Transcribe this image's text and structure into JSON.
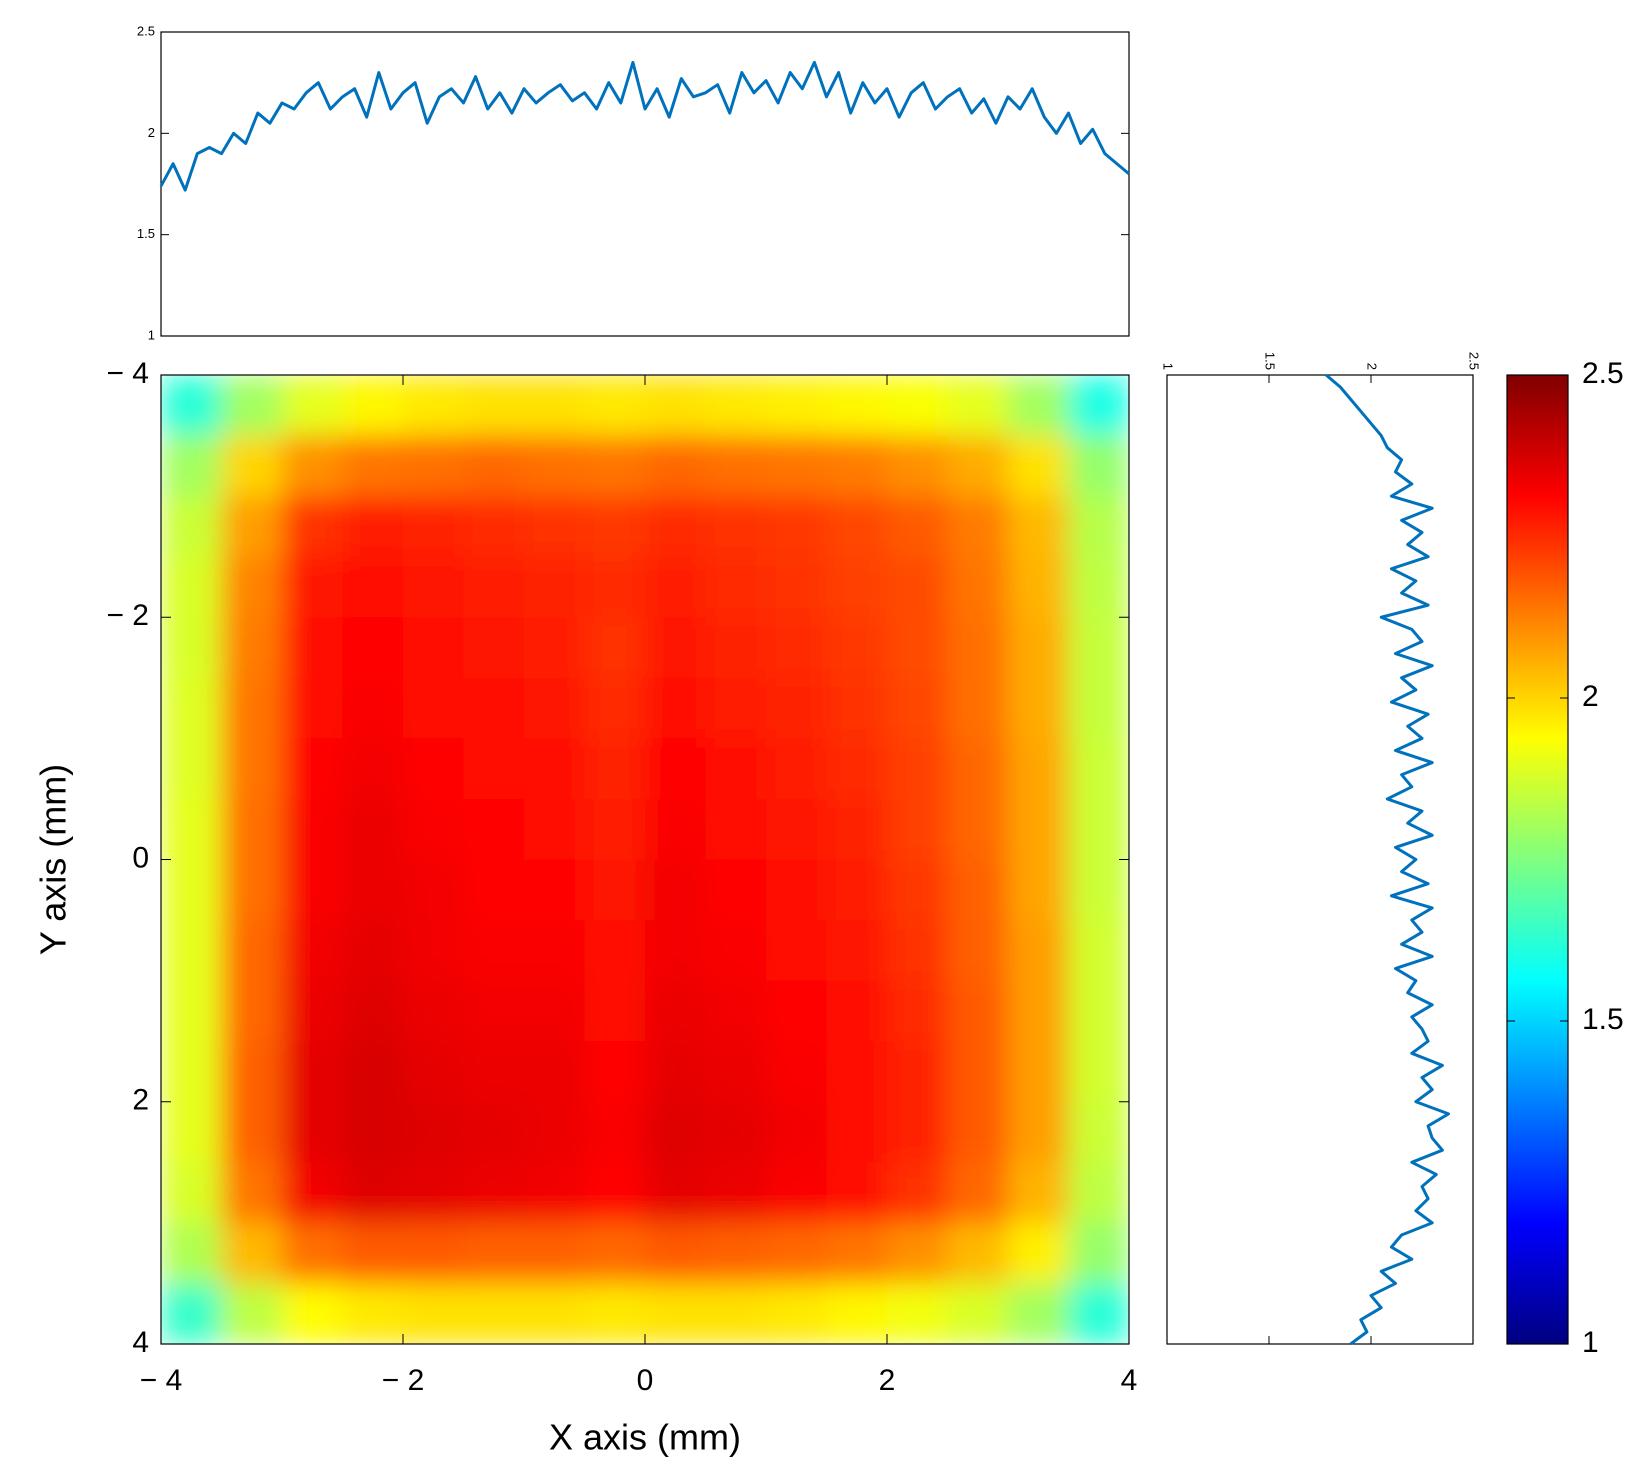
{
  "chart_data": [
    {
      "type": "heatmap",
      "xlabel": "X axis (mm)",
      "ylabel": "Y axis (mm)",
      "xlim": [
        -4,
        4
      ],
      "ylim": [
        4,
        -4
      ],
      "xticks": [
        {
          "value": -4,
          "label": "− 4"
        },
        {
          "value": -2,
          "label": "− 2"
        },
        0,
        2,
        4
      ],
      "yticks": [
        {
          "value": -4,
          "label": "− 4"
        },
        {
          "value": -2,
          "label": "− 2"
        },
        0,
        2,
        4
      ],
      "colormap": "jet",
      "clim": [
        1,
        2.5
      ],
      "cticks": [
        1,
        1.5,
        2,
        2.5
      ],
      "values": [
        [
          1.62,
          1.8,
          1.9,
          1.95,
          1.97,
          1.98,
          1.98,
          1.97,
          1.98,
          1.97,
          1.96,
          1.95,
          1.93,
          1.9,
          1.8,
          1.6
        ],
        [
          1.8,
          2.0,
          2.1,
          2.14,
          2.15,
          2.16,
          2.15,
          2.14,
          2.16,
          2.15,
          2.14,
          2.13,
          2.1,
          2.06,
          1.98,
          1.78
        ],
        [
          1.86,
          2.08,
          2.24,
          2.27,
          2.26,
          2.25,
          2.24,
          2.23,
          2.25,
          2.24,
          2.23,
          2.21,
          2.18,
          2.13,
          2.04,
          1.83
        ],
        [
          1.88,
          2.12,
          2.28,
          2.3,
          2.28,
          2.27,
          2.26,
          2.25,
          2.27,
          2.25,
          2.24,
          2.22,
          2.2,
          2.14,
          2.05,
          1.84
        ],
        [
          1.88,
          2.13,
          2.29,
          2.31,
          2.29,
          2.28,
          2.27,
          2.24,
          2.28,
          2.26,
          2.25,
          2.23,
          2.2,
          2.15,
          2.06,
          1.85
        ],
        [
          1.89,
          2.14,
          2.3,
          2.32,
          2.3,
          2.29,
          2.28,
          2.25,
          2.3,
          2.27,
          2.26,
          2.24,
          2.21,
          2.15,
          2.06,
          1.85
        ],
        [
          1.89,
          2.14,
          2.31,
          2.33,
          2.31,
          2.3,
          2.29,
          2.26,
          2.31,
          2.29,
          2.27,
          2.25,
          2.22,
          2.16,
          2.07,
          1.86
        ],
        [
          1.9,
          2.15,
          2.32,
          2.34,
          2.32,
          2.31,
          2.3,
          2.27,
          2.32,
          2.3,
          2.28,
          2.26,
          2.22,
          2.16,
          2.07,
          1.86
        ],
        [
          1.9,
          2.15,
          2.32,
          2.34,
          2.33,
          2.31,
          2.31,
          2.28,
          2.33,
          2.31,
          2.29,
          2.27,
          2.23,
          2.17,
          2.07,
          1.86
        ],
        [
          1.9,
          2.16,
          2.33,
          2.35,
          2.33,
          2.32,
          2.32,
          2.29,
          2.33,
          2.32,
          2.3,
          2.28,
          2.24,
          2.17,
          2.08,
          1.87
        ],
        [
          1.9,
          2.16,
          2.34,
          2.36,
          2.34,
          2.33,
          2.33,
          2.3,
          2.34,
          2.33,
          2.31,
          2.29,
          2.25,
          2.18,
          2.08,
          1.87
        ],
        [
          1.9,
          2.17,
          2.35,
          2.37,
          2.35,
          2.34,
          2.34,
          2.31,
          2.35,
          2.34,
          2.32,
          2.3,
          2.26,
          2.18,
          2.08,
          1.87
        ],
        [
          1.9,
          2.17,
          2.35,
          2.37,
          2.36,
          2.35,
          2.34,
          2.32,
          2.36,
          2.35,
          2.33,
          2.3,
          2.26,
          2.18,
          2.08,
          1.86
        ],
        [
          1.88,
          2.14,
          2.33,
          2.36,
          2.35,
          2.34,
          2.33,
          2.31,
          2.35,
          2.34,
          2.32,
          2.29,
          2.24,
          2.16,
          2.05,
          1.84
        ],
        [
          1.82,
          2.04,
          2.15,
          2.18,
          2.18,
          2.17,
          2.17,
          2.16,
          2.18,
          2.17,
          2.16,
          2.14,
          2.1,
          2.04,
          1.96,
          1.78
        ],
        [
          1.64,
          1.84,
          1.94,
          1.97,
          1.98,
          1.98,
          1.98,
          1.97,
          1.98,
          1.98,
          1.97,
          1.95,
          1.92,
          1.88,
          1.8,
          1.62
        ]
      ]
    },
    {
      "type": "line",
      "orientation": "horizontal",
      "color": "#0072bd",
      "xlim": [
        -4,
        4
      ],
      "ylim": [
        1,
        2.5
      ],
      "yticks": [
        1,
        1.5,
        2,
        2.5
      ],
      "x": [
        -4,
        -3.9,
        -3.8,
        -3.7,
        -3.6,
        -3.5,
        -3.4,
        -3.3,
        -3.2,
        -3.1,
        -3,
        -2.9,
        -2.8,
        -2.7,
        -2.6,
        -2.5,
        -2.4,
        -2.3,
        -2.2,
        -2.1,
        -2,
        -1.9,
        -1.8,
        -1.7,
        -1.6,
        -1.5,
        -1.4,
        -1.3,
        -1.2,
        -1.1,
        -1,
        -0.9,
        -0.8,
        -0.7,
        -0.6,
        -0.5,
        -0.4,
        -0.3,
        -0.2,
        -0.1,
        0,
        0.1,
        0.2,
        0.3,
        0.4,
        0.5,
        0.6,
        0.7,
        0.8,
        0.9,
        1,
        1.1,
        1.2,
        1.3,
        1.4,
        1.5,
        1.6,
        1.7,
        1.8,
        1.9,
        2,
        2.1,
        2.2,
        2.3,
        2.4,
        2.5,
        2.6,
        2.7,
        2.8,
        2.9,
        3,
        3.1,
        3.2,
        3.3,
        3.4,
        3.5,
        3.6,
        3.7,
        3.8,
        3.9,
        4
      ],
      "values": [
        1.74,
        1.85,
        1.72,
        1.9,
        1.93,
        1.9,
        2.0,
        1.95,
        2.1,
        2.05,
        2.15,
        2.12,
        2.2,
        2.25,
        2.12,
        2.18,
        2.22,
        2.08,
        2.3,
        2.12,
        2.2,
        2.25,
        2.05,
        2.18,
        2.22,
        2.15,
        2.28,
        2.12,
        2.2,
        2.1,
        2.22,
        2.15,
        2.2,
        2.24,
        2.16,
        2.2,
        2.12,
        2.25,
        2.15,
        2.35,
        2.12,
        2.22,
        2.08,
        2.27,
        2.18,
        2.2,
        2.24,
        2.1,
        2.3,
        2.2,
        2.26,
        2.15,
        2.3,
        2.22,
        2.35,
        2.18,
        2.3,
        2.1,
        2.25,
        2.15,
        2.22,
        2.08,
        2.2,
        2.25,
        2.12,
        2.18,
        2.22,
        2.1,
        2.17,
        2.05,
        2.18,
        2.12,
        2.22,
        2.08,
        2.0,
        2.1,
        1.95,
        2.02,
        1.9,
        1.85,
        1.8
      ]
    },
    {
      "type": "line",
      "orientation": "vertical",
      "color": "#0072bd",
      "xlim": [
        1,
        2.5
      ],
      "xticks": [
        1,
        1.5,
        2,
        2.5
      ],
      "ylim": [
        4,
        -4
      ],
      "y": [
        -4,
        -3.9,
        -3.8,
        -3.7,
        -3.6,
        -3.5,
        -3.4,
        -3.3,
        -3.2,
        -3.1,
        -3,
        -2.9,
        -2.8,
        -2.7,
        -2.6,
        -2.5,
        -2.4,
        -2.3,
        -2.2,
        -2.1,
        -2,
        -1.9,
        -1.8,
        -1.7,
        -1.6,
        -1.5,
        -1.4,
        -1.3,
        -1.2,
        -1.1,
        -1,
        -0.9,
        -0.8,
        -0.7,
        -0.6,
        -0.5,
        -0.4,
        -0.3,
        -0.2,
        -0.1,
        0,
        0.1,
        0.2,
        0.3,
        0.4,
        0.5,
        0.6,
        0.7,
        0.8,
        0.9,
        1,
        1.1,
        1.2,
        1.3,
        1.4,
        1.5,
        1.6,
        1.7,
        1.8,
        1.9,
        2,
        2.1,
        2.2,
        2.3,
        2.4,
        2.5,
        2.6,
        2.7,
        2.8,
        2.9,
        3,
        3.1,
        3.2,
        3.3,
        3.4,
        3.5,
        3.6,
        3.7,
        3.8,
        3.9,
        4
      ],
      "values": [
        1.78,
        1.85,
        1.9,
        1.95,
        2.0,
        2.05,
        2.08,
        2.15,
        2.12,
        2.2,
        2.1,
        2.3,
        2.15,
        2.25,
        2.18,
        2.28,
        2.1,
        2.22,
        2.15,
        2.28,
        2.05,
        2.2,
        2.25,
        2.12,
        2.3,
        2.15,
        2.22,
        2.1,
        2.28,
        2.18,
        2.25,
        2.12,
        2.3,
        2.15,
        2.2,
        2.08,
        2.25,
        2.18,
        2.3,
        2.12,
        2.22,
        2.15,
        2.28,
        2.1,
        2.3,
        2.2,
        2.25,
        2.15,
        2.3,
        2.12,
        2.22,
        2.18,
        2.3,
        2.2,
        2.25,
        2.28,
        2.2,
        2.35,
        2.25,
        2.3,
        2.22,
        2.38,
        2.28,
        2.3,
        2.35,
        2.2,
        2.32,
        2.25,
        2.28,
        2.22,
        2.3,
        2.15,
        2.1,
        2.2,
        2.05,
        2.12,
        2.0,
        2.05,
        1.95,
        1.98,
        1.9
      ]
    }
  ]
}
